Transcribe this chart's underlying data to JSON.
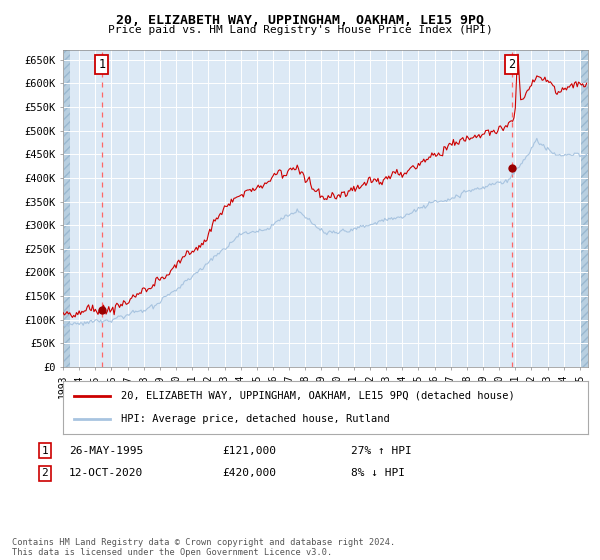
{
  "title1": "20, ELIZABETH WAY, UPPINGHAM, OAKHAM, LE15 9PQ",
  "title2": "Price paid vs. HM Land Registry's House Price Index (HPI)",
  "legend_line1": "20, ELIZABETH WAY, UPPINGHAM, OAKHAM, LE15 9PQ (detached house)",
  "legend_line2": "HPI: Average price, detached house, Rutland",
  "annotation1_label": "1",
  "annotation1_date": "26-MAY-1995",
  "annotation1_price": "£121,000",
  "annotation1_hpi": "27% ↑ HPI",
  "annotation2_label": "2",
  "annotation2_date": "12-OCT-2020",
  "annotation2_price": "£420,000",
  "annotation2_hpi": "8% ↓ HPI",
  "footnote": "Contains HM Land Registry data © Crown copyright and database right 2024.\nThis data is licensed under the Open Government Licence v3.0.",
  "sale1_year": 1995.4,
  "sale1_value": 121000,
  "sale2_year": 2020.78,
  "sale2_value": 420000,
  "hpi_color": "#a8c4e0",
  "property_color": "#cc0000",
  "dot_color": "#990000",
  "plot_bg": "#dce9f5",
  "hatch_color": "#b8cfe0",
  "grid_color": "#ffffff",
  "dashed_color": "#ff6666",
  "ylim": [
    0,
    670000
  ],
  "xlim_start": 1993.0,
  "xlim_end": 2025.5
}
